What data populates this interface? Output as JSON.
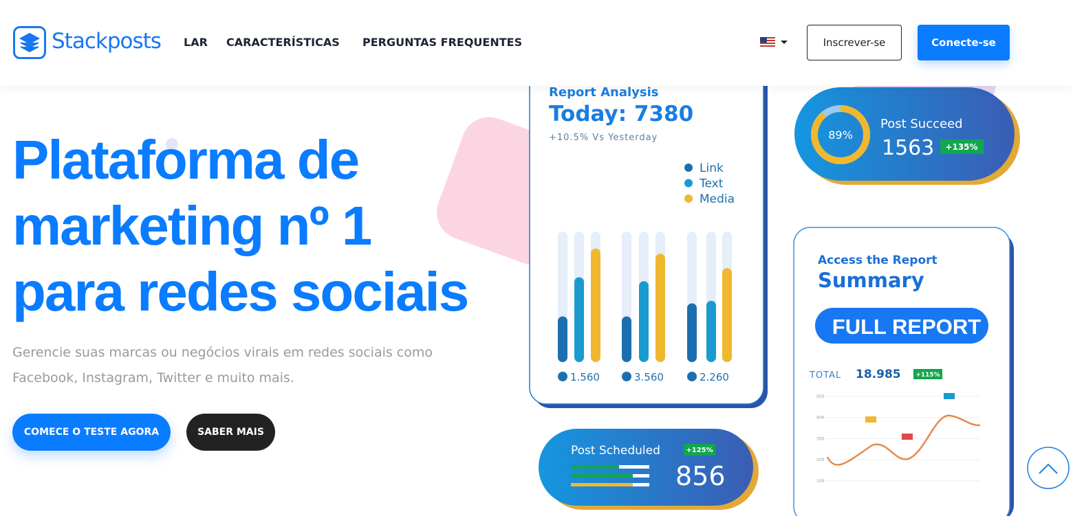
{
  "header": {
    "logo": "Stackposts",
    "nav": [
      "LAR",
      "CARACTERÍSTICAS",
      "PERGUNTAS FREQUENTES"
    ],
    "signup": "Inscrever-se",
    "login": "Conecte-se"
  },
  "hero": {
    "title_lines": [
      "Plataforma de",
      "marketing nº 1",
      "para redes sociais"
    ],
    "subtitle": "Gerencie suas marcas ou negócios virais em redes sociais como Facebook, Instagram, Twitter e muito mais.",
    "buttons": [
      "COMECE O TESTE AGORA",
      "SABER MAIS"
    ]
  },
  "illustration": {
    "report": {
      "title": "Report Analysis",
      "today": "Today: 7380",
      "change": "+10.5% Vs Yesterday",
      "series": [
        {
          "name": "Link",
          "color": "#1b6fae"
        },
        {
          "name": "Text",
          "color": "#1a9bd0"
        },
        {
          "name": "Media",
          "color": "#f0b82e"
        }
      ],
      "groups": [
        {
          "label": "1.560",
          "values": [
            35,
            65,
            87
          ]
        },
        {
          "label": "3.560",
          "values": [
            35,
            62,
            83
          ]
        },
        {
          "label": "2.260",
          "values": [
            45,
            47,
            72
          ]
        }
      ]
    },
    "post_succeed": {
      "percent": "89%",
      "label": "Post Succeed",
      "value": "1563",
      "badge": "+135%"
    },
    "summary": {
      "kicker": "Access the Report",
      "title": "Summary",
      "button": "FULL REPORT",
      "total_label": "TOTAL",
      "total": "18.985",
      "badge": "+115%",
      "yticks": [
        500,
        400,
        300,
        200,
        100
      ]
    },
    "post_scheduled": {
      "label": "Post Scheduled",
      "badge": "+125%",
      "value": "856"
    }
  }
}
